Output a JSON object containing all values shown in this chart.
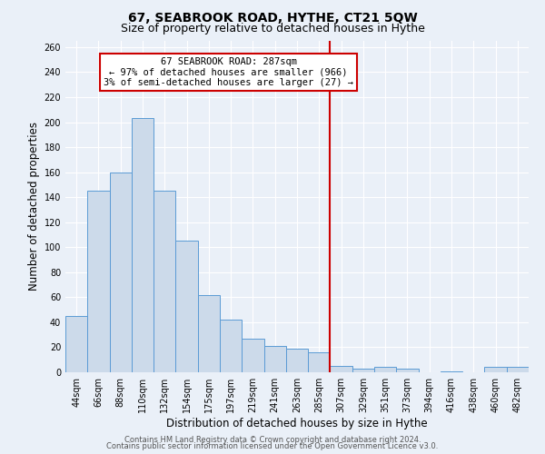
{
  "title": "67, SEABROOK ROAD, HYTHE, CT21 5QW",
  "subtitle": "Size of property relative to detached houses in Hythe",
  "xlabel": "Distribution of detached houses by size in Hythe",
  "ylabel": "Number of detached properties",
  "bar_labels": [
    "44sqm",
    "66sqm",
    "88sqm",
    "110sqm",
    "132sqm",
    "154sqm",
    "175sqm",
    "197sqm",
    "219sqm",
    "241sqm",
    "263sqm",
    "285sqm",
    "307sqm",
    "329sqm",
    "351sqm",
    "373sqm",
    "394sqm",
    "416sqm",
    "438sqm",
    "460sqm",
    "482sqm"
  ],
  "bar_values": [
    45,
    145,
    160,
    203,
    145,
    105,
    62,
    42,
    27,
    21,
    19,
    16,
    5,
    3,
    4,
    3,
    0,
    1,
    0,
    4,
    4
  ],
  "bar_color": "#ccdaea",
  "bar_edge_color": "#5b9bd5",
  "vline_x": 11.5,
  "vline_color": "#cc0000",
  "annotation_line1": "67 SEABROOK ROAD: 287sqm",
  "annotation_line2": "← 97% of detached houses are smaller (966)",
  "annotation_line3": "3% of semi-detached houses are larger (27) →",
  "annotation_box_color": "#cc0000",
  "annotation_box_bg": "#ffffff",
  "ylim_max": 265,
  "yticks": [
    0,
    20,
    40,
    60,
    80,
    100,
    120,
    140,
    160,
    180,
    200,
    220,
    240,
    260
  ],
  "bg_color": "#eaf0f8",
  "grid_color": "#d0dae8",
  "footer_line1": "Contains HM Land Registry data © Crown copyright and database right 2024.",
  "footer_line2": "Contains public sector information licensed under the Open Government Licence v3.0.",
  "title_fontsize": 10,
  "subtitle_fontsize": 9,
  "axis_label_fontsize": 8.5,
  "tick_fontsize": 7,
  "annotation_fontsize": 7.5,
  "footer_fontsize": 6
}
